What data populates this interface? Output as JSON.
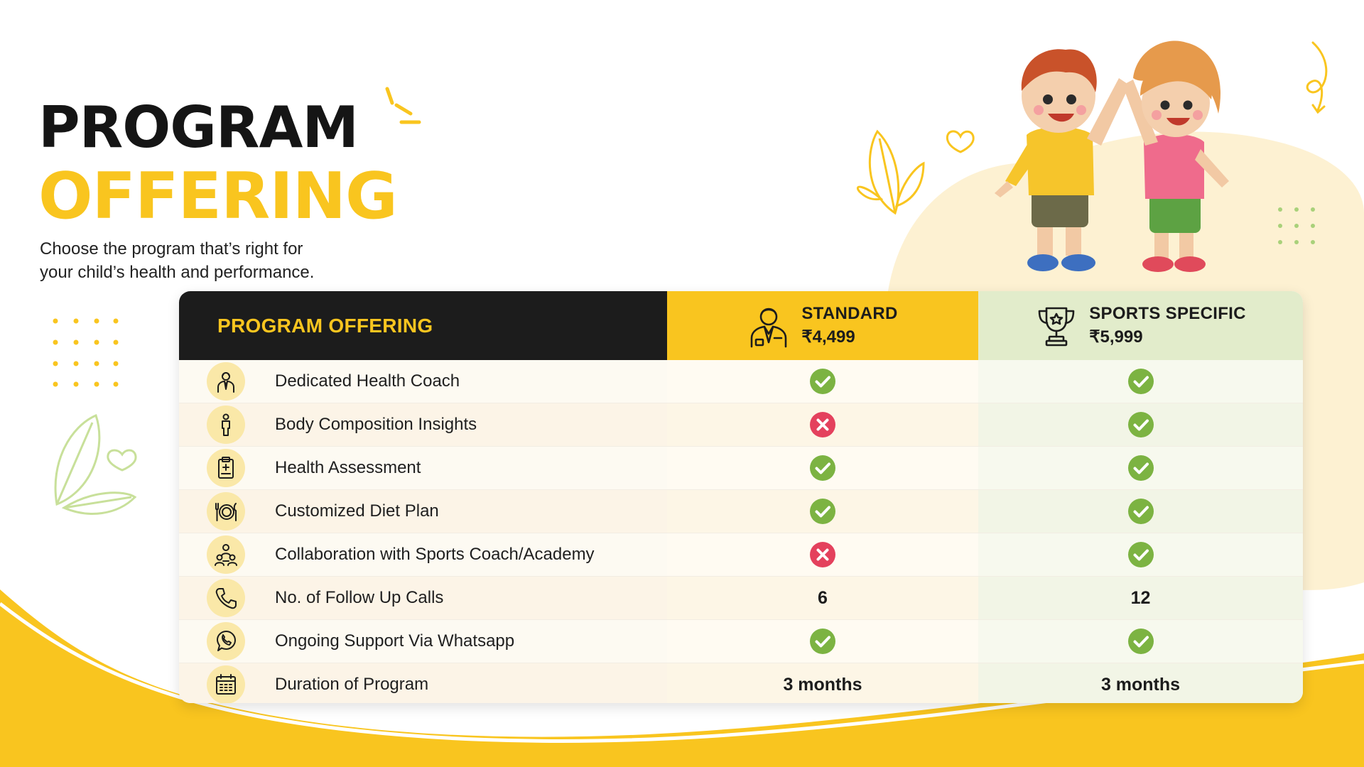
{
  "header": {
    "title_line1": "PROGRAM",
    "title_line2": "OFFERING",
    "subtitle_line1": "Choose the program that’s right for",
    "subtitle_line2": "your child’s health and performance."
  },
  "table": {
    "feature_header": "PROGRAM OFFERING",
    "plans": [
      {
        "name": "STANDARD",
        "price": "₹4,499",
        "icon": "coach-person-icon"
      },
      {
        "name": "SPORTS SPECIFIC",
        "price": "₹5,999",
        "icon": "trophy-icon"
      }
    ],
    "rows": [
      {
        "label": "Dedicated Health Coach",
        "icon": "coach-icon",
        "standard": "check",
        "sports": "check"
      },
      {
        "label": "Body Composition Insights",
        "icon": "body-icon",
        "standard": "cross",
        "sports": "check"
      },
      {
        "label": "Health Assessment",
        "icon": "clipboard-icon",
        "standard": "check",
        "sports": "check"
      },
      {
        "label": "Customized Diet Plan",
        "icon": "plate-icon",
        "standard": "check",
        "sports": "check"
      },
      {
        "label": "Collaboration with Sports Coach/Academy",
        "icon": "team-icon",
        "standard": "cross",
        "sports": "check"
      },
      {
        "label": "No. of Follow Up Calls",
        "icon": "phone-icon",
        "standard": "6",
        "sports": "12"
      },
      {
        "label": "Ongoing Support Via Whatsapp",
        "icon": "whatsapp-icon",
        "standard": "check",
        "sports": "check"
      },
      {
        "label": "Duration of Program",
        "icon": "calendar-icon",
        "standard": "3 months",
        "sports": "3 months"
      }
    ]
  },
  "colors": {
    "accent_yellow": "#f9c51f",
    "header_dark": "#1c1c1c",
    "sports_header": "#e2eccb",
    "check_green": "#7cb342",
    "cross_red": "#e4415d"
  }
}
